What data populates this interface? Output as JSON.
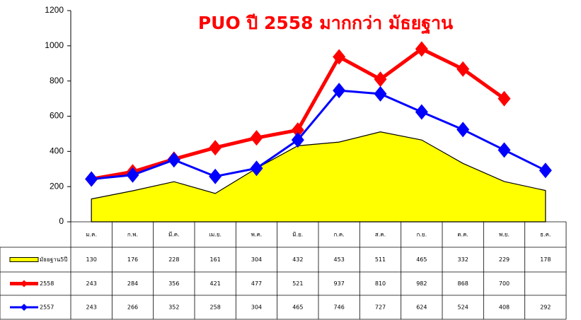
{
  "chart_data": {
    "type": "line",
    "title": "PUO  ปี 2558  มากกว่า มัธยฐาน",
    "categories": [
      "ม.ค.",
      "ก.พ.",
      "มี.ค.",
      "เม.ย.",
      "พ.ค.",
      "มิ.ย.",
      "ก.ค.",
      "ส.ค.",
      "ก.ย.",
      "ต.ค.",
      "พ.ย.",
      "ธ.ค."
    ],
    "series": [
      {
        "name": "มัธยฐาน5ปี",
        "type": "area",
        "color": "#ffff00",
        "values": [
          130,
          176,
          228,
          161,
          304,
          432,
          453,
          511,
          465,
          332,
          229,
          178
        ]
      },
      {
        "name": "2558",
        "type": "line",
        "color": "#ff0000",
        "values": [
          243,
          284,
          356,
          421,
          477,
          521,
          937,
          810,
          982,
          868,
          700,
          null
        ]
      },
      {
        "name": "2557",
        "type": "line",
        "color": "#0000ff",
        "values": [
          243,
          266,
          352,
          258,
          304,
          465,
          746,
          727,
          624,
          524,
          408,
          292
        ]
      }
    ],
    "ylim": [
      0,
      1200
    ],
    "yticks": [
      0,
      200,
      400,
      600,
      800,
      1000,
      1200
    ],
    "grid": false
  }
}
